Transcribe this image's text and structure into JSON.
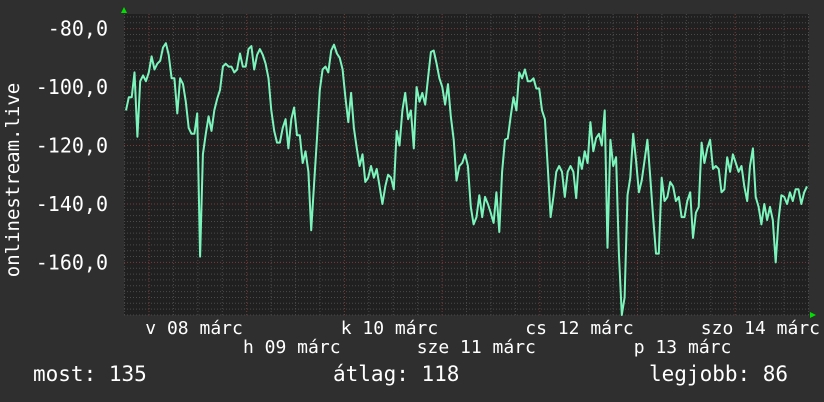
{
  "chart_data": {
    "type": "line",
    "ylabel": "onlinestream.live",
    "ylim": [
      -178,
      -75
    ],
    "yticks": [
      -80,
      -100,
      -120,
      -140,
      -160
    ],
    "ytick_labels": [
      "-80,0",
      "-100,0",
      "-120,0",
      "-140,0",
      "-160,0"
    ],
    "xtick_labels": [
      {
        "weekday": "v",
        "day": "08",
        "month": "márc"
      },
      {
        "weekday": "h",
        "day": "09",
        "month": "márc"
      },
      {
        "weekday": "k",
        "day": "10",
        "month": "márc"
      },
      {
        "weekday": "sze",
        "day": "11",
        "month": "márc"
      },
      {
        "weekday": "cs",
        "day": "12",
        "month": "márc"
      },
      {
        "weekday": "p",
        "day": "13",
        "month": "márc"
      },
      {
        "weekday": "szo",
        "day": "14",
        "month": "márc"
      }
    ],
    "grid": true,
    "line_color": "#7cf5bd",
    "series": [
      {
        "values": [
          -108,
          -103.5,
          -103.5,
          -95,
          -117,
          -98,
          -96,
          -98,
          -95,
          -89.5,
          -94,
          -92,
          -91,
          -86.5,
          -85,
          -89,
          -97,
          -97,
          -109,
          -97,
          -99,
          -105,
          -114,
          -116,
          -116,
          -109,
          -158,
          -123,
          -116,
          -110,
          -115,
          -108,
          -104,
          -101,
          -93,
          -92,
          -93,
          -93,
          -95,
          -94,
          -88.5,
          -93,
          -93,
          -87,
          -86,
          -94,
          -89,
          -87,
          -89,
          -92,
          -97,
          -108,
          -115,
          -119,
          -119,
          -114,
          -111,
          -121,
          -111,
          -107,
          -116.5,
          -116.5,
          -126,
          -122,
          -129,
          -149,
          -133,
          -118,
          -101,
          -94,
          -93,
          -95,
          -87.5,
          -85.5,
          -88.5,
          -90,
          -94,
          -103.5,
          -112,
          -102,
          -114,
          -121,
          -127,
          -123,
          -132.5,
          -131,
          -127,
          -131,
          -128,
          -134,
          -140,
          -134,
          -130,
          -131,
          -135,
          -115,
          -120,
          -108,
          -102,
          -111,
          -108,
          -121,
          -100,
          -105,
          -102,
          -106,
          -97,
          -88,
          -87.5,
          -92,
          -97,
          -100,
          -106,
          -99,
          -110,
          -118,
          -132,
          -127,
          -126,
          -123,
          -127,
          -141,
          -147,
          -144.5,
          -137,
          -144.5,
          -137.6,
          -140,
          -143,
          -146.5,
          -136,
          -149.6,
          -129,
          -118,
          -117.5,
          -110,
          -103.5,
          -108,
          -95,
          -97,
          -94,
          -98,
          -98,
          -97,
          -100.5,
          -100.5,
          -108,
          -111,
          -127,
          -144.5,
          -137.6,
          -129,
          -127,
          -129,
          -137.6,
          -129,
          -127,
          -129,
          -138,
          -124,
          -128,
          -122,
          -126,
          -112,
          -122,
          -117.5,
          -116,
          -120,
          -108,
          -155,
          -118,
          -127,
          -124,
          -157,
          -178,
          -172,
          -137,
          -131,
          -116,
          -125,
          -136,
          -132,
          -125,
          -118,
          -131,
          -144.5,
          -157,
          -157,
          -131,
          -139,
          -137.6,
          -132.5,
          -134,
          -139,
          -137.6,
          -144.5,
          -144.5,
          -139,
          -136,
          -151.6,
          -143,
          -141,
          -119,
          -126,
          -121,
          -118,
          -128,
          -127,
          -128,
          -136,
          -135,
          -124,
          -129,
          -123,
          -126,
          -129,
          -127,
          -134,
          -139,
          -127,
          -121,
          -137.6,
          -141,
          -147,
          -140,
          -145.5,
          -141,
          -145.5,
          -160,
          -145.5,
          -137,
          -137.6,
          -140,
          -136,
          -139,
          -135,
          -135,
          -140,
          -136,
          -134
        ]
      }
    ]
  },
  "stats": {
    "current": "most: 135",
    "average": "átlag: 118",
    "best": "legjobb: 86"
  }
}
